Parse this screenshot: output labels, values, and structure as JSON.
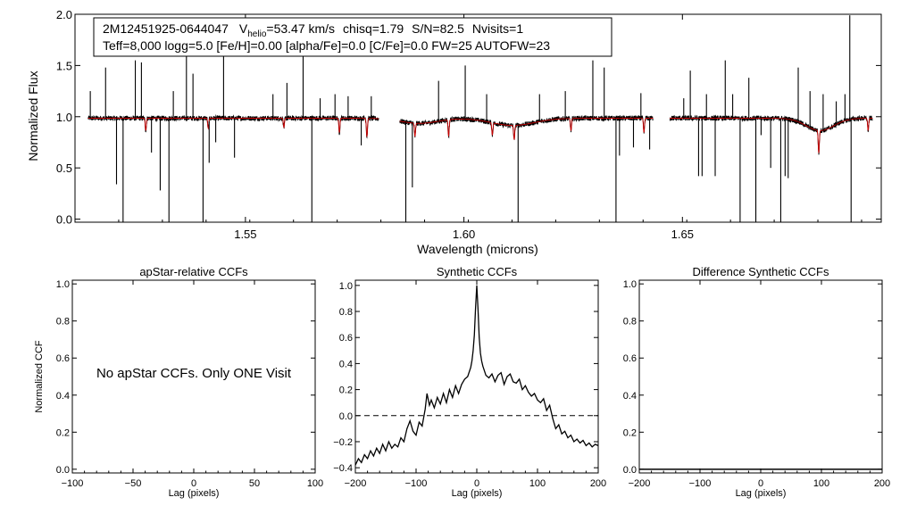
{
  "chart_data": [
    {
      "type": "line",
      "id": "spectrum",
      "xlabel": "Wavelength (microns)",
      "ylabel": "Normalized Flux",
      "xlim": [
        1.511,
        1.6955
      ],
      "ylim": [
        -0.03,
        2.0
      ],
      "xticks": [
        1.55,
        1.6,
        1.65
      ],
      "xtick_labels": [
        "1.55",
        "1.60",
        "1.65"
      ],
      "yticks": [
        0.0,
        0.5,
        1.0,
        1.5,
        2.0
      ],
      "ytick_labels": [
        "0.0",
        "0.5",
        "1.0",
        "1.5",
        "2.0"
      ],
      "info": {
        "star_id": "2M12451925-0644047",
        "v_prefix": "V",
        "v_sub": "helio",
        "v_value": "=53.47 km/s",
        "chisq": "chisq=1.79",
        "snr": "S/N=82.5",
        "nvisits": "Nvisits=1",
        "params_line": "Teff=8,000 logg=5.0 [Fe/H]=0.00 [alpha/Fe]=0.0 [C/Fe]=0.0 FW=25 AUTOFW=23"
      },
      "segments": [
        [
          1.514,
          1.5805
        ],
        [
          1.5853,
          1.6433
        ],
        [
          1.6471,
          1.6935
        ]
      ],
      "continuum": 0.985,
      "series": [
        {
          "name": "observed",
          "color": "#000000"
        },
        {
          "name": "model",
          "color": "#cc0000"
        }
      ],
      "spikes": [
        {
          "x": 1.5145,
          "y": 1.25
        },
        {
          "x": 1.518,
          "y": 1.48
        },
        {
          "x": 1.5205,
          "y": 0.34
        },
        {
          "x": 1.522,
          "y": -0.03
        },
        {
          "x": 1.5248,
          "y": 1.55
        },
        {
          "x": 1.5262,
          "y": 1.53
        },
        {
          "x": 1.5285,
          "y": 0.65
        },
        {
          "x": 1.5305,
          "y": 0.28
        },
        {
          "x": 1.5325,
          "y": -0.03
        },
        {
          "x": 1.5335,
          "y": 1.25
        },
        {
          "x": 1.5365,
          "y": 1.82
        },
        {
          "x": 1.538,
          "y": 1.42
        },
        {
          "x": 1.5403,
          "y": -0.03
        },
        {
          "x": 1.5417,
          "y": 0.55
        },
        {
          "x": 1.5432,
          "y": 0.75
        },
        {
          "x": 1.545,
          "y": 1.85
        },
        {
          "x": 1.5475,
          "y": 0.6
        },
        {
          "x": 1.5563,
          "y": 1.22
        },
        {
          "x": 1.5595,
          "y": 1.33
        },
        {
          "x": 1.5632,
          "y": 1.95
        },
        {
          "x": 1.5652,
          "y": -0.03
        },
        {
          "x": 1.5671,
          "y": 1.18
        },
        {
          "x": 1.5705,
          "y": 1.22
        },
        {
          "x": 1.5735,
          "y": 1.2
        },
        {
          "x": 1.5765,
          "y": 0.72
        },
        {
          "x": 1.5788,
          "y": 1.2
        },
        {
          "x": 1.5867,
          "y": -0.03
        },
        {
          "x": 1.5882,
          "y": 0.31
        },
        {
          "x": 1.5942,
          "y": 1.35
        },
        {
          "x": 1.6003,
          "y": 1.5
        },
        {
          "x": 1.6052,
          "y": 1.22
        },
        {
          "x": 1.6124,
          "y": -0.03
        },
        {
          "x": 1.6173,
          "y": 1.22
        },
        {
          "x": 1.6232,
          "y": 1.25
        },
        {
          "x": 1.6295,
          "y": 1.55
        },
        {
          "x": 1.6321,
          "y": 1.48
        },
        {
          "x": 1.6348,
          "y": -0.03
        },
        {
          "x": 1.6356,
          "y": 0.62
        },
        {
          "x": 1.6388,
          "y": 0.7
        },
        {
          "x": 1.6405,
          "y": 1.23
        },
        {
          "x": 1.6425,
          "y": 0.68
        },
        {
          "x": 1.6503,
          "y": 1.18
        },
        {
          "x": 1.6518,
          "y": 1.45
        },
        {
          "x": 1.6537,
          "y": 0.42
        },
        {
          "x": 1.6545,
          "y": 0.42
        },
        {
          "x": 1.6555,
          "y": 1.22
        },
        {
          "x": 1.6575,
          "y": 0.42
        },
        {
          "x": 1.6598,
          "y": 1.55
        },
        {
          "x": 1.6615,
          "y": 1.22
        },
        {
          "x": 1.6632,
          "y": -0.03
        },
        {
          "x": 1.6652,
          "y": 1.38
        },
        {
          "x": 1.6668,
          "y": -0.03
        },
        {
          "x": 1.668,
          "y": 0.82
        },
        {
          "x": 1.6702,
          "y": 0.5
        },
        {
          "x": 1.6725,
          "y": -0.03
        },
        {
          "x": 1.6735,
          "y": 0.42
        },
        {
          "x": 1.6742,
          "y": 0.4
        },
        {
          "x": 1.6765,
          "y": 1.48
        },
        {
          "x": 1.6792,
          "y": 1.25
        },
        {
          "x": 1.6822,
          "y": 1.22
        },
        {
          "x": 1.6852,
          "y": 1.15
        },
        {
          "x": 1.6872,
          "y": 1.22
        },
        {
          "x": 1.6883,
          "y": 1.99
        },
        {
          "x": 1.6886,
          "y": -0.03
        }
      ],
      "absorptions": [
        {
          "x": 1.5272,
          "depth": 0.12
        },
        {
          "x": 1.5415,
          "depth": 0.1
        },
        {
          "x": 1.5588,
          "depth": 0.09
        },
        {
          "x": 1.5715,
          "depth": 0.14
        },
        {
          "x": 1.5778,
          "depth": 0.18
        },
        {
          "x": 1.5888,
          "depth": 0.13
        },
        {
          "x": 1.5965,
          "depth": 0.16
        },
        {
          "x": 1.6065,
          "depth": 0.12
        },
        {
          "x": 1.6115,
          "depth": 0.14
        },
        {
          "x": 1.6245,
          "depth": 0.12
        },
        {
          "x": 1.6412,
          "depth": 0.14
        },
        {
          "x": 1.6812,
          "depth": 0.22
        },
        {
          "x": 1.6925,
          "depth": 0.12
        }
      ],
      "broad_dips": [
        {
          "x": 1.5898,
          "width": 0.006,
          "depth": 0.05
        },
        {
          "x": 1.6112,
          "width": 0.007,
          "depth": 0.07
        },
        {
          "x": 1.6815,
          "width": 0.0045,
          "depth": 0.12
        }
      ]
    },
    {
      "type": "line",
      "id": "apstar-ccf",
      "title": "apStar-relative CCFs",
      "xlabel": "Lag (pixels)",
      "ylabel": "Normalized CCF",
      "note": "No apStar CCFs.  Only ONE Visit",
      "xlim": [
        -100,
        100
      ],
      "ylim": [
        -0.02,
        1.02
      ],
      "xticks": [
        -100,
        -50,
        0,
        50,
        100
      ],
      "xtick_labels": [
        "−100",
        "−50",
        "0",
        "50",
        "100"
      ],
      "yticks": [
        0.0,
        0.2,
        0.4,
        0.6,
        0.8,
        1.0
      ],
      "ytick_labels": [
        "0.0",
        "0.2",
        "0.4",
        "0.6",
        "0.8",
        "1.0"
      ],
      "series": []
    },
    {
      "type": "line",
      "id": "synthetic-ccf",
      "title": "Synthetic CCFs",
      "xlabel": "Lag (pixels)",
      "xlim": [
        -200,
        200
      ],
      "ylim": [
        -0.44,
        1.04
      ],
      "xticks": [
        -200,
        -100,
        0,
        100,
        200
      ],
      "xtick_labels": [
        "−200",
        "−100",
        "0",
        "100",
        "200"
      ],
      "yticks": [
        -0.4,
        -0.2,
        0.0,
        0.2,
        0.4,
        0.6,
        0.8,
        1.0
      ],
      "ytick_labels": [
        "−0.4",
        "−0.2",
        "0.0",
        "0.2",
        "0.4",
        "0.6",
        "0.8",
        "1.0"
      ],
      "reference_line": {
        "y": 0.0,
        "style": "dashed"
      },
      "series": [
        {
          "name": "ccf",
          "x": [
            -200,
            -195,
            -190,
            -185,
            -180,
            -175,
            -170,
            -165,
            -160,
            -155,
            -150,
            -145,
            -140,
            -135,
            -130,
            -125,
            -120,
            -115,
            -110,
            -105,
            -100,
            -95,
            -90,
            -85,
            -82,
            -78,
            -75,
            -70,
            -65,
            -60,
            -55,
            -50,
            -45,
            -40,
            -35,
            -30,
            -25,
            -20,
            -15,
            -10,
            -8,
            -6,
            -4,
            -2,
            0,
            2,
            4,
            6,
            8,
            10,
            15,
            20,
            25,
            30,
            35,
            40,
            45,
            50,
            55,
            60,
            65,
            70,
            75,
            80,
            85,
            90,
            95,
            100,
            105,
            110,
            115,
            120,
            125,
            130,
            135,
            140,
            145,
            150,
            155,
            160,
            165,
            170,
            175,
            180,
            185,
            190,
            195,
            200
          ],
          "y": [
            -0.38,
            -0.33,
            -0.36,
            -0.3,
            -0.33,
            -0.27,
            -0.31,
            -0.25,
            -0.29,
            -0.22,
            -0.27,
            -0.2,
            -0.25,
            -0.22,
            -0.24,
            -0.17,
            -0.2,
            -0.1,
            -0.04,
            -0.12,
            -0.15,
            -0.05,
            -0.08,
            0.05,
            0.17,
            0.08,
            0.12,
            0.06,
            0.14,
            0.09,
            0.17,
            0.1,
            0.2,
            0.14,
            0.23,
            0.17,
            0.24,
            0.28,
            0.3,
            0.37,
            0.42,
            0.5,
            0.62,
            0.83,
            1.0,
            0.82,
            0.6,
            0.48,
            0.42,
            0.38,
            0.31,
            0.29,
            0.32,
            0.26,
            0.31,
            0.33,
            0.24,
            0.3,
            0.32,
            0.26,
            0.25,
            0.28,
            0.2,
            0.23,
            0.18,
            0.15,
            0.17,
            0.12,
            0.1,
            0.13,
            0.04,
            0.08,
            -0.02,
            -0.1,
            -0.07,
            -0.14,
            -0.12,
            -0.17,
            -0.15,
            -0.2,
            -0.18,
            -0.21,
            -0.19,
            -0.23,
            -0.21,
            -0.24,
            -0.22,
            -0.23
          ]
        }
      ]
    },
    {
      "type": "line",
      "id": "difference-ccf",
      "title": "Difference Synthetic CCFs",
      "xlabel": "Lag (pixels)",
      "xlim": [
        -200,
        200
      ],
      "ylim": [
        -0.02,
        1.02
      ],
      "xticks": [
        -200,
        -100,
        0,
        100,
        200
      ],
      "xtick_labels": [
        "−200",
        "−100",
        "0",
        "100",
        "200"
      ],
      "yticks": [
        0.0,
        0.2,
        0.4,
        0.6,
        0.8,
        1.0
      ],
      "ytick_labels": [
        "0.0",
        "0.2",
        "0.4",
        "0.6",
        "0.8",
        "1.0"
      ],
      "series": [
        {
          "name": "difference",
          "x": [
            -200,
            200
          ],
          "y": [
            0.0,
            0.0
          ]
        }
      ]
    }
  ]
}
